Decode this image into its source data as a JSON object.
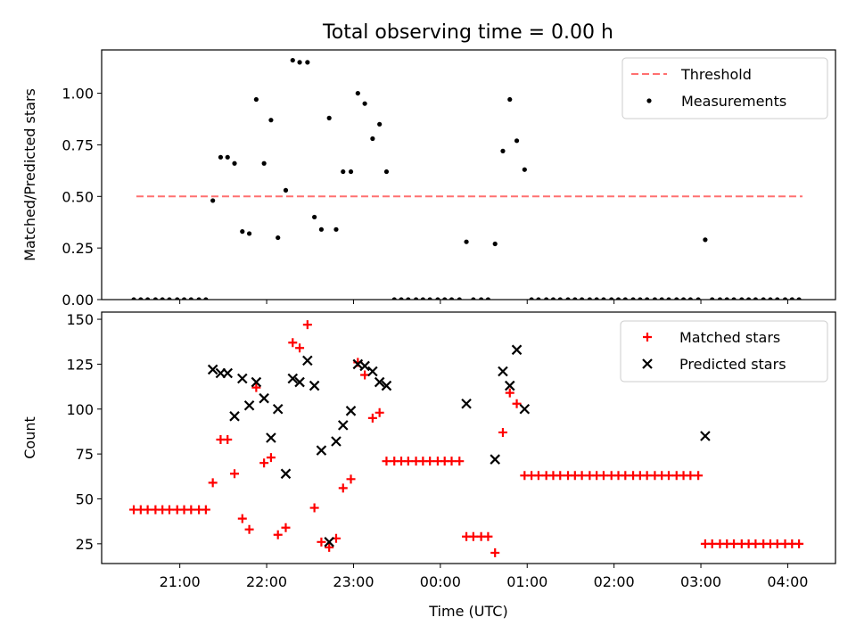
{
  "figure": {
    "title": "Total observing time = 0.00 h"
  },
  "chart_data": [
    {
      "type": "scatter",
      "ylabel": "Matched/Predicted stars",
      "xlabel": "",
      "ylim": [
        0,
        1.21
      ],
      "yticks": [
        0.0,
        0.25,
        0.5,
        0.75,
        1.0
      ],
      "ytick_labels": [
        "0.00",
        "0.25",
        "0.50",
        "0.75",
        "1.00"
      ],
      "xticks_hours": [
        21,
        22,
        23,
        24,
        25,
        26,
        27,
        28
      ],
      "legend_loc": "upper right",
      "threshold": {
        "name": "Threshold",
        "value": 0.5,
        "x_range": [
          20.5,
          28.17
        ],
        "color": "#ff7070",
        "style": "dashed"
      },
      "series": [
        {
          "name": "Measurements",
          "marker": "dot",
          "color": "#000000",
          "points": [
            [
              20.47,
              0
            ],
            [
              20.55,
              0
            ],
            [
              20.63,
              0
            ],
            [
              20.72,
              0
            ],
            [
              20.8,
              0
            ],
            [
              20.88,
              0
            ],
            [
              20.97,
              0
            ],
            [
              21.05,
              0
            ],
            [
              21.13,
              0
            ],
            [
              21.22,
              0
            ],
            [
              21.3,
              0
            ],
            [
              21.38,
              0.48
            ],
            [
              21.47,
              0.69
            ],
            [
              21.55,
              0.69
            ],
            [
              21.63,
              0.66
            ],
            [
              21.72,
              0.33
            ],
            [
              21.8,
              0.32
            ],
            [
              21.88,
              0.97
            ],
            [
              21.97,
              0.66
            ],
            [
              22.05,
              0.87
            ],
            [
              22.13,
              0.3
            ],
            [
              22.22,
              0.53
            ],
            [
              22.3,
              1.16
            ],
            [
              22.38,
              1.15
            ],
            [
              22.47,
              1.15
            ],
            [
              22.55,
              0.4
            ],
            [
              22.63,
              0.34
            ],
            [
              22.72,
              0.88
            ],
            [
              22.8,
              0.34
            ],
            [
              22.88,
              0.62
            ],
            [
              22.97,
              0.62
            ],
            [
              23.05,
              1.0
            ],
            [
              23.13,
              0.95
            ],
            [
              23.22,
              0.78
            ],
            [
              23.3,
              0.85
            ],
            [
              23.38,
              0.62
            ],
            [
              23.47,
              0
            ],
            [
              23.55,
              0
            ],
            [
              23.63,
              0
            ],
            [
              23.72,
              0
            ],
            [
              23.8,
              0
            ],
            [
              23.88,
              0
            ],
            [
              23.97,
              0
            ],
            [
              24.05,
              0
            ],
            [
              24.13,
              0
            ],
            [
              24.22,
              0
            ],
            [
              24.3,
              0.28
            ],
            [
              24.38,
              0
            ],
            [
              24.47,
              0
            ],
            [
              24.55,
              0
            ],
            [
              24.63,
              0.27
            ],
            [
              24.72,
              0.72
            ],
            [
              24.8,
              0.97
            ],
            [
              24.88,
              0.77
            ],
            [
              24.97,
              0.63
            ],
            [
              25.05,
              0
            ],
            [
              25.13,
              0
            ],
            [
              25.22,
              0
            ],
            [
              25.3,
              0
            ],
            [
              25.38,
              0
            ],
            [
              25.47,
              0
            ],
            [
              25.55,
              0
            ],
            [
              25.63,
              0
            ],
            [
              25.72,
              0
            ],
            [
              25.8,
              0
            ],
            [
              25.88,
              0
            ],
            [
              25.97,
              0
            ],
            [
              26.05,
              0
            ],
            [
              26.13,
              0
            ],
            [
              26.22,
              0
            ],
            [
              26.3,
              0
            ],
            [
              26.38,
              0
            ],
            [
              26.47,
              0
            ],
            [
              26.55,
              0
            ],
            [
              26.63,
              0
            ],
            [
              26.72,
              0
            ],
            [
              26.8,
              0
            ],
            [
              26.88,
              0
            ],
            [
              26.97,
              0
            ],
            [
              27.05,
              0.29
            ],
            [
              27.13,
              0
            ],
            [
              27.22,
              0
            ],
            [
              27.3,
              0
            ],
            [
              27.38,
              0
            ],
            [
              27.47,
              0
            ],
            [
              27.55,
              0
            ],
            [
              27.63,
              0
            ],
            [
              27.72,
              0
            ],
            [
              27.8,
              0
            ],
            [
              27.88,
              0
            ],
            [
              27.97,
              0
            ],
            [
              28.05,
              0
            ],
            [
              28.13,
              0
            ]
          ]
        }
      ]
    },
    {
      "type": "scatter",
      "ylabel": "Count",
      "xlabel": "Time (UTC)",
      "ylim": [
        14,
        154
      ],
      "yticks": [
        25,
        50,
        75,
        100,
        125,
        150
      ],
      "ytick_labels": [
        "25",
        "50",
        "75",
        "100",
        "125",
        "150"
      ],
      "xticks_hours": [
        21,
        22,
        23,
        24,
        25,
        26,
        27,
        28
      ],
      "xtick_labels": [
        "21:00",
        "22:00",
        "23:00",
        "00:00",
        "01:00",
        "02:00",
        "03:00",
        "04:00"
      ],
      "legend_loc": "upper right",
      "series": [
        {
          "name": "Matched stars",
          "marker": "plus",
          "color": "#ff0000",
          "points": [
            [
              20.47,
              44
            ],
            [
              20.55,
              44
            ],
            [
              20.63,
              44
            ],
            [
              20.72,
              44
            ],
            [
              20.8,
              44
            ],
            [
              20.88,
              44
            ],
            [
              20.97,
              44
            ],
            [
              21.05,
              44
            ],
            [
              21.13,
              44
            ],
            [
              21.22,
              44
            ],
            [
              21.3,
              44
            ],
            [
              21.38,
              59
            ],
            [
              21.47,
              83
            ],
            [
              21.55,
              83
            ],
            [
              21.63,
              64
            ],
            [
              21.72,
              39
            ],
            [
              21.8,
              33
            ],
            [
              21.88,
              112
            ],
            [
              21.97,
              70
            ],
            [
              22.05,
              73
            ],
            [
              22.13,
              30
            ],
            [
              22.22,
              34
            ],
            [
              22.3,
              137
            ],
            [
              22.38,
              134
            ],
            [
              22.47,
              147
            ],
            [
              22.55,
              45
            ],
            [
              22.63,
              26
            ],
            [
              22.72,
              23
            ],
            [
              22.8,
              28
            ],
            [
              22.88,
              56
            ],
            [
              22.97,
              61
            ],
            [
              23.05,
              126
            ],
            [
              23.13,
              119
            ],
            [
              23.22,
              95
            ],
            [
              23.3,
              98
            ],
            [
              23.38,
              71
            ],
            [
              23.47,
              71
            ],
            [
              23.55,
              71
            ],
            [
              23.63,
              71
            ],
            [
              23.72,
              71
            ],
            [
              23.8,
              71
            ],
            [
              23.88,
              71
            ],
            [
              23.97,
              71
            ],
            [
              24.05,
              71
            ],
            [
              24.13,
              71
            ],
            [
              24.22,
              71
            ],
            [
              24.3,
              29
            ],
            [
              24.38,
              29
            ],
            [
              24.47,
              29
            ],
            [
              24.55,
              29
            ],
            [
              24.63,
              20
            ],
            [
              24.72,
              87
            ],
            [
              24.8,
              109
            ],
            [
              24.88,
              103
            ],
            [
              24.97,
              63
            ],
            [
              25.05,
              63
            ],
            [
              25.13,
              63
            ],
            [
              25.22,
              63
            ],
            [
              25.3,
              63
            ],
            [
              25.38,
              63
            ],
            [
              25.47,
              63
            ],
            [
              25.55,
              63
            ],
            [
              25.63,
              63
            ],
            [
              25.72,
              63
            ],
            [
              25.8,
              63
            ],
            [
              25.88,
              63
            ],
            [
              25.97,
              63
            ],
            [
              26.05,
              63
            ],
            [
              26.13,
              63
            ],
            [
              26.22,
              63
            ],
            [
              26.3,
              63
            ],
            [
              26.38,
              63
            ],
            [
              26.47,
              63
            ],
            [
              26.55,
              63
            ],
            [
              26.63,
              63
            ],
            [
              26.72,
              63
            ],
            [
              26.8,
              63
            ],
            [
              26.88,
              63
            ],
            [
              26.97,
              63
            ],
            [
              27.05,
              25
            ],
            [
              27.13,
              25
            ],
            [
              27.22,
              25
            ],
            [
              27.3,
              25
            ],
            [
              27.38,
              25
            ],
            [
              27.47,
              25
            ],
            [
              27.55,
              25
            ],
            [
              27.63,
              25
            ],
            [
              27.72,
              25
            ],
            [
              27.8,
              25
            ],
            [
              27.88,
              25
            ],
            [
              27.97,
              25
            ],
            [
              28.05,
              25
            ],
            [
              28.13,
              25
            ]
          ]
        },
        {
          "name": "Predicted stars",
          "marker": "x",
          "color": "#000000",
          "points": [
            [
              21.38,
              122
            ],
            [
              21.47,
              120
            ],
            [
              21.55,
              120
            ],
            [
              21.63,
              96
            ],
            [
              21.72,
              117
            ],
            [
              21.8,
              102
            ],
            [
              21.88,
              115
            ],
            [
              21.97,
              106
            ],
            [
              22.05,
              84
            ],
            [
              22.13,
              100
            ],
            [
              22.22,
              64
            ],
            [
              22.3,
              117
            ],
            [
              22.38,
              115
            ],
            [
              22.47,
              127
            ],
            [
              22.55,
              113
            ],
            [
              22.63,
              77
            ],
            [
              22.72,
              26
            ],
            [
              22.8,
              82
            ],
            [
              22.88,
              91
            ],
            [
              22.97,
              99
            ],
            [
              23.05,
              125
            ],
            [
              23.13,
              124
            ],
            [
              23.22,
              121
            ],
            [
              23.3,
              115
            ],
            [
              23.38,
              113
            ],
            [
              24.3,
              103
            ],
            [
              24.63,
              72
            ],
            [
              24.72,
              121
            ],
            [
              24.8,
              113
            ],
            [
              24.88,
              133
            ],
            [
              24.97,
              100
            ],
            [
              27.05,
              85
            ]
          ]
        }
      ]
    }
  ]
}
